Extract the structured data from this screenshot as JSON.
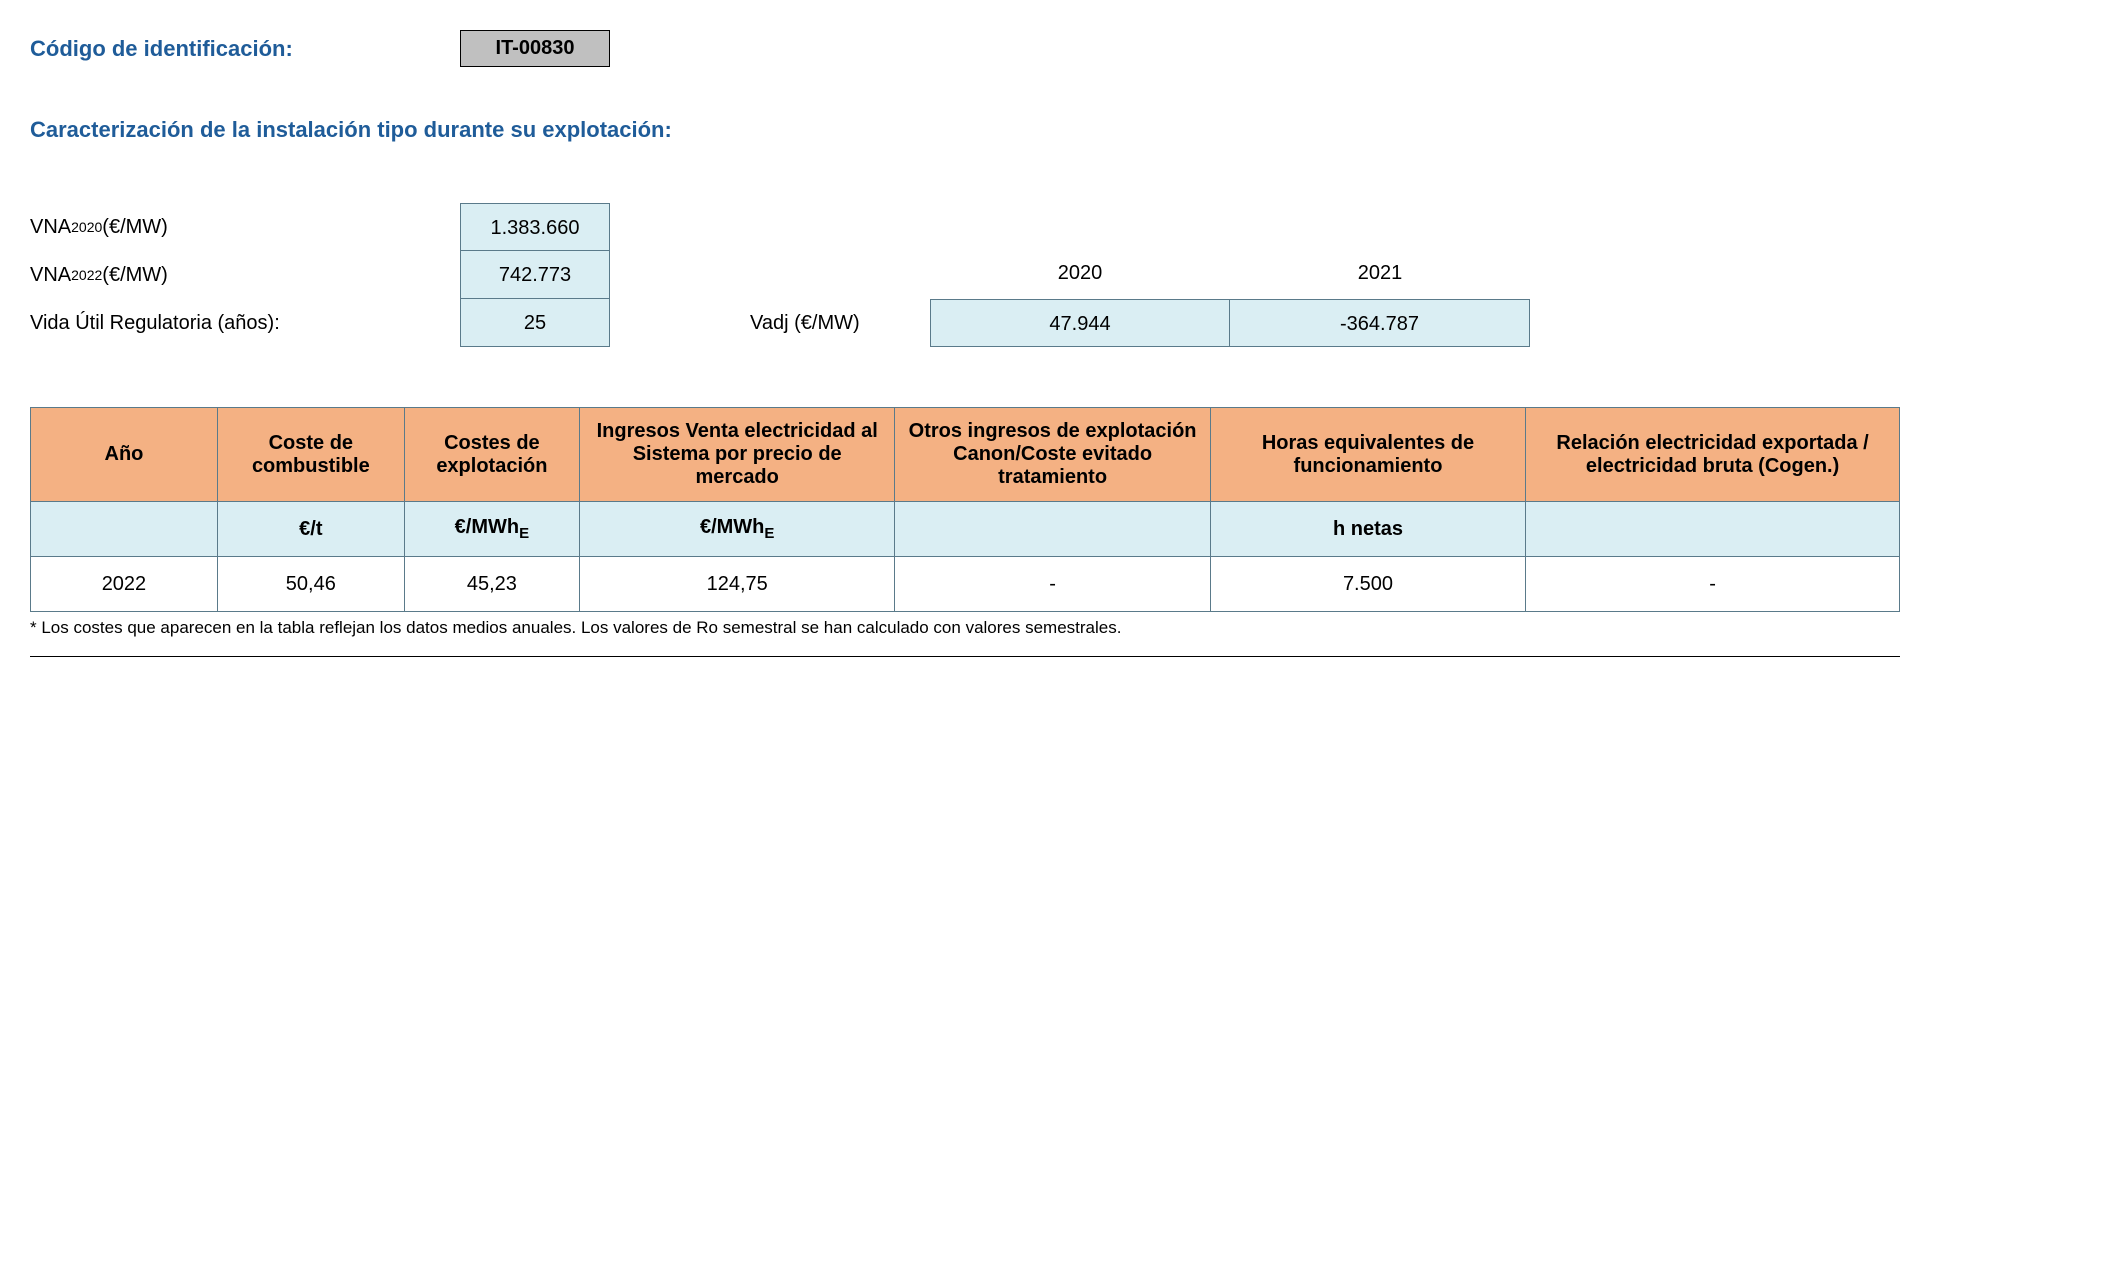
{
  "header": {
    "label": "Código de identificación:",
    "code": "IT-00830"
  },
  "section_title": "Caracterización de la instalación tipo durante su explotación:",
  "params": {
    "vna2020_label_pre": "VNA",
    "vna2020_sub": "2020",
    "vna_unit": " (€/MW)",
    "vna2020_val": "1.383.660",
    "vna2022_label_pre": "VNA",
    "vna2022_sub": "2022",
    "vna2022_val": "742.773",
    "vida_label": "Vida Útil Regulatoria (años):",
    "vida_val": "25"
  },
  "vadj": {
    "label": "Vadj (€/MW)",
    "years": [
      "2020",
      "2021"
    ],
    "values": [
      "47.944",
      "-364.787"
    ]
  },
  "table": {
    "headers": [
      "Año",
      "Coste de combustible",
      "Costes de explotación",
      "Ingresos Venta electricidad al Sistema por precio de mercado",
      "Otros ingresos de explotación Canon/Coste evitado tratamiento",
      "Horas equivalentes de funcionamiento",
      "Relación electricidad exportada / electricidad bruta (Cogen.)"
    ],
    "units": [
      "",
      "€/t",
      "€/MWh",
      "€/MWh",
      "",
      "h netas",
      ""
    ],
    "unit_sub_cols": [
      2,
      3
    ],
    "unit_sub": "E",
    "rows": [
      [
        "2022",
        "50,46",
        "45,23",
        "124,75",
        "-",
        "7.500",
        "-"
      ]
    ],
    "col_widths": [
      "160px",
      "160px",
      "150px",
      "270px",
      "270px",
      "270px",
      "320px"
    ],
    "header_bg": "#f4b183",
    "cell_bg_units": "#daeef3",
    "border_color": "#5a7a8a"
  },
  "footnote": "* Los costes que aparecen en la tabla reflejan los datos medios anuales. Los valores de Ro semestral se han calculado con valores semestrales."
}
